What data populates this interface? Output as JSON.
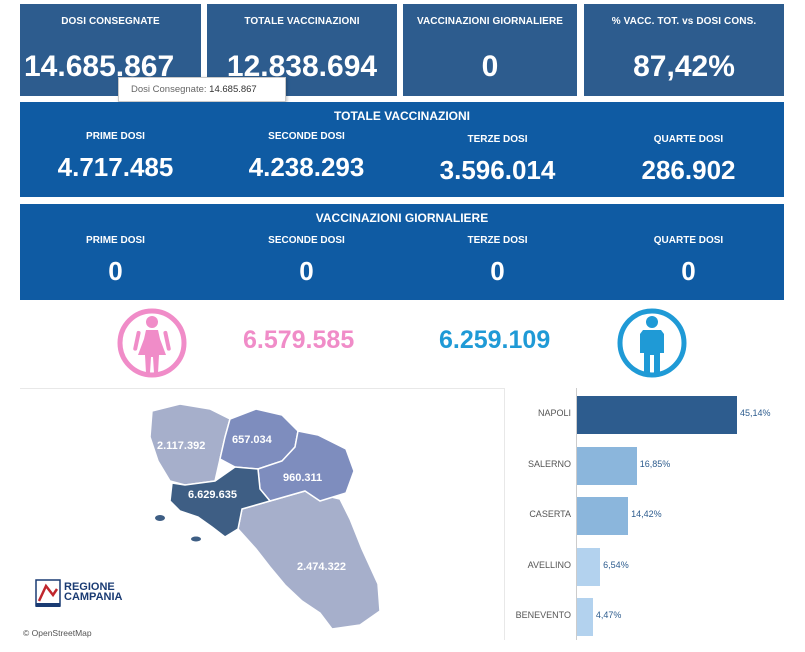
{
  "kpis": [
    {
      "label": "DOSI  CONSEGNATE",
      "value": "14.685.867"
    },
    {
      "label": "TOTALE VACCINAZIONI",
      "value": "12.838.694"
    },
    {
      "label": "VACCINAZIONI GIORNALIERE",
      "value": "0"
    },
    {
      "label": "% VACC. TOT. vs DOSI CONS.",
      "value": "87,42%"
    }
  ],
  "tooltip": {
    "label": "Dosi Consegnate:",
    "value": "14.685.867"
  },
  "totale": {
    "title": "TOTALE VACCINAZIONI",
    "items": [
      {
        "label": "PRIME DOSI",
        "value": "4.717.485"
      },
      {
        "label": "SECONDE DOSI",
        "value": "4.238.293"
      },
      {
        "label": "TERZE DOSI",
        "value": "3.596.014"
      },
      {
        "label": "QUARTE DOSI",
        "value": "286.902"
      }
    ]
  },
  "giornaliere": {
    "title": "VACCINAZIONI GIORNALIERE",
    "items": [
      {
        "label": "PRIME DOSI",
        "value": "0"
      },
      {
        "label": "SECONDE DOSI",
        "value": "0"
      },
      {
        "label": "TERZE DOSI",
        "value": "0"
      },
      {
        "label": "QUARTE DOSI",
        "value": "0"
      }
    ]
  },
  "gender": {
    "female": {
      "value": "6.579.585",
      "color": "#f08cc8",
      "icon": "female-icon"
    },
    "male": {
      "value": "6.259.109",
      "color": "#1f9ad6",
      "icon": "male-icon"
    }
  },
  "map": {
    "provinces": [
      {
        "name": "Caserta",
        "value": "2.117.392"
      },
      {
        "name": "Benevento",
        "value": "657.034"
      },
      {
        "name": "Avellino",
        "value": "960.311"
      },
      {
        "name": "Napoli",
        "value": "6.629.635"
      },
      {
        "name": "Salerno",
        "value": "2.474.322"
      }
    ],
    "logo": {
      "line1": "REGIONE",
      "line2": "CAMPANIA"
    },
    "attribution": "© OpenStreetMap"
  },
  "bar_chart": {
    "categories": [
      "NAPOLI",
      "SALERNO",
      "CASERTA",
      "AVELLINO",
      "BENEVENTO"
    ],
    "values": [
      45.14,
      16.85,
      14.42,
      6.54,
      4.47
    ],
    "labels": [
      "45,14%",
      "16,85%",
      "14,42%",
      "6,54%",
      "4,47%"
    ],
    "colors": [
      "#2d5c8e",
      "#8bb6dc",
      "#8bb6dc",
      "#b3d2ee",
      "#b3d2ee"
    ]
  }
}
